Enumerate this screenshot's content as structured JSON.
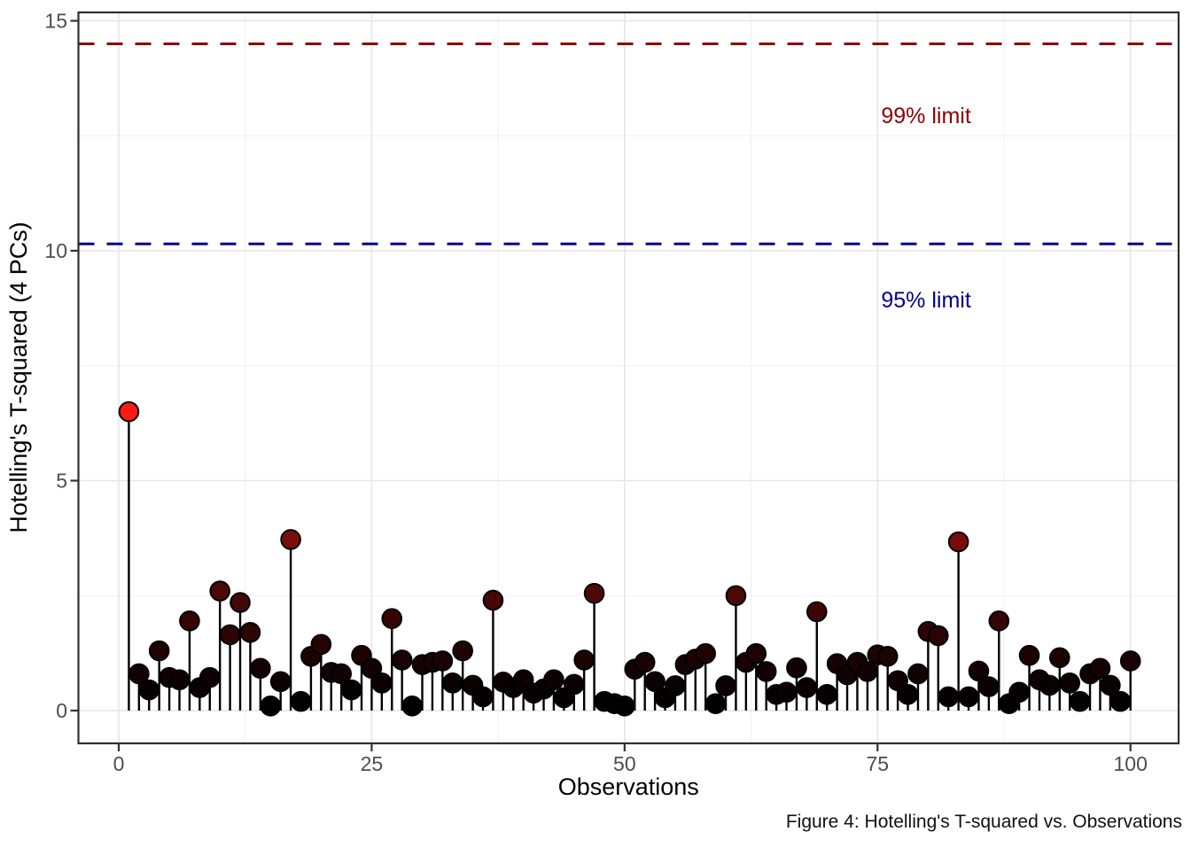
{
  "chart_data": {
    "type": "stem",
    "title": "",
    "xlabel": "Observations",
    "ylabel": "Hotelling's T-squared (4 PCs)",
    "caption": "Figure 4: Hotelling's T-squared vs. Observations",
    "legend": "none",
    "grid": "on",
    "x_ticks": [
      0,
      25,
      50,
      75,
      100
    ],
    "y_ticks": [
      0,
      5,
      10,
      15
    ],
    "x_minor_gridlines": [
      12.5,
      37.5,
      62.5,
      87.5
    ],
    "y_minor_gridlines": [
      2.5,
      7.5,
      12.5
    ],
    "xlim": [
      -4,
      104.7
    ],
    "ylim": [
      -0.71,
      15.18
    ],
    "observations_start_at": 1,
    "values": [
      6.5,
      0.8,
      0.45,
      1.3,
      0.72,
      0.67,
      1.95,
      0.5,
      0.72,
      2.6,
      1.65,
      2.35,
      1.7,
      0.92,
      0.1,
      0.63,
      3.72,
      0.2,
      1.18,
      1.44,
      0.83,
      0.8,
      0.45,
      1.2,
      0.92,
      0.6,
      2.0,
      1.1,
      0.1,
      1.0,
      1.05,
      1.08,
      0.6,
      1.3,
      0.55,
      0.3,
      2.4,
      0.62,
      0.5,
      0.67,
      0.38,
      0.47,
      0.67,
      0.28,
      0.57,
      1.1,
      2.55,
      0.2,
      0.15,
      0.1,
      0.9,
      1.05,
      0.63,
      0.28,
      0.54,
      1.0,
      1.12,
      1.24,
      0.15,
      0.54,
      2.5,
      1.05,
      1.24,
      0.85,
      0.35,
      0.4,
      0.93,
      0.5,
      2.15,
      0.35,
      1.02,
      0.78,
      1.05,
      0.85,
      1.21,
      1.18,
      0.65,
      0.35,
      0.8,
      1.72,
      1.63,
      0.3,
      3.67,
      0.3,
      0.86,
      0.52,
      1.95,
      0.15,
      0.4,
      1.2,
      0.67,
      0.55,
      1.15,
      0.6,
      0.2,
      0.8,
      0.92,
      0.55,
      0.2,
      1.08
    ],
    "limits": [
      {
        "label": "99% limit",
        "value": 14.5,
        "color": "#8B0000",
        "label_x": 79.8,
        "label_y": 12.95
      },
      {
        "label": "95% limit",
        "value": 10.15,
        "color": "#00008B",
        "label_x": 79.8,
        "label_y": 8.94
      }
    ],
    "color_scale": {
      "low": "#000000",
      "high": "#FF1A14",
      "domain": [
        0,
        6.5
      ],
      "exponent": 1.3
    },
    "style_colors": {
      "grid_major": "#E6E6E6",
      "grid_minor": "#F0F0F0",
      "panel_border": "#2E2E2E",
      "tick_mark": "#333333",
      "tick_label": "#4D4D4D",
      "stem": "#000000",
      "background": "#FFFFFF"
    }
  }
}
